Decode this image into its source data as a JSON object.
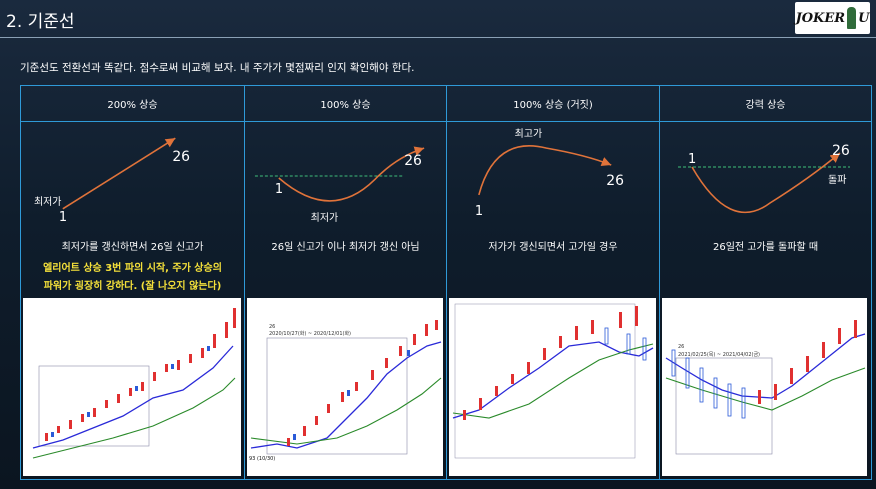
{
  "header": {
    "title": "2. 기준선",
    "logo_text": "JOKER  U"
  },
  "intro": "기준선도 전환선과 똑같다.  점수로써 비교해 보자. 내 주가가 몇점짜리 인지 확인해야 한다.",
  "columns": [
    {
      "heading": "200% 상승",
      "labels": {
        "start": "1",
        "start_caption": "최저가",
        "end": "26"
      },
      "description": "최저가를 갱신하면서 26일 신고가",
      "highlight_line1": "엘리어트 상승 3번 파의 시작, 주가 상승의",
      "highlight_line2": "파워가 굉장히 강하다. (잘 나오지 않는다)"
    },
    {
      "heading": "100% 상승",
      "labels": {
        "start": "1",
        "low_caption": "최저가",
        "end": "26"
      },
      "description": "26일 신고가 이나 최저가 갱신 아님",
      "chart_note_1": "26",
      "chart_note_2": "2020/10/27(화) ~ 2020/12/01(화)",
      "chart_note_3": "93 (10/30)"
    },
    {
      "heading": "100% 상승 (거짓)",
      "labels": {
        "start": "1",
        "high_caption": "최고가",
        "end": "26"
      },
      "description": "저가가 갱신되면서 고가일 경우"
    },
    {
      "heading": "강력 상승",
      "labels": {
        "start": "1",
        "end": "26",
        "end_caption": "돌파"
      },
      "description": "26일전 고가를 돌파할 때",
      "chart_note_1": "26",
      "chart_note_2": "2021/02/25(목) ~ 2021/04/02(금)"
    }
  ],
  "colors": {
    "accent_border": "#2f9ad8",
    "curve": "#e0733a",
    "dashed_line": "#3fbf7a",
    "highlight_text": "#f5e13a"
  }
}
